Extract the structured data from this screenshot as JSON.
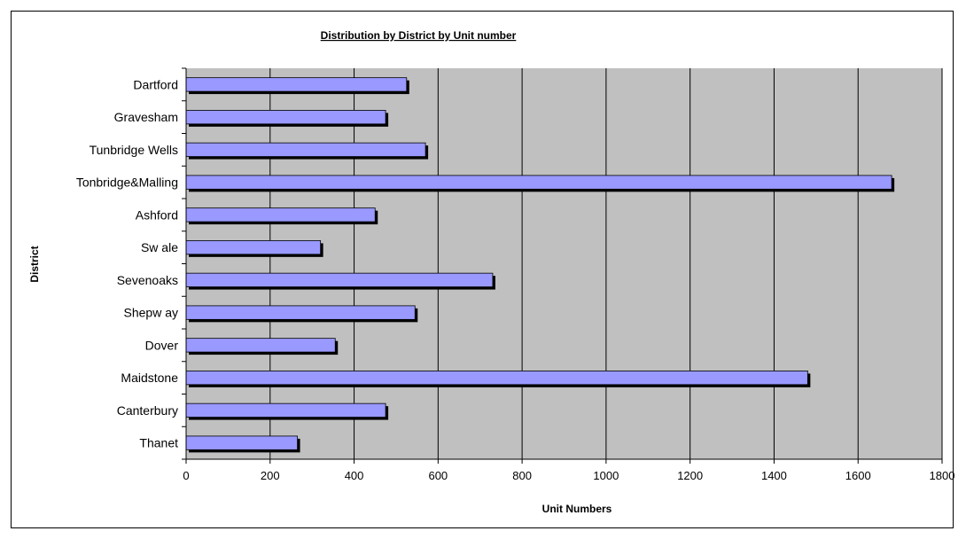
{
  "chart_data": {
    "type": "bar",
    "orientation": "horizontal",
    "title": "Distribution by District by Unit number",
    "xlabel": "Unit Numbers",
    "ylabel": "District",
    "xlim": [
      0,
      1800
    ],
    "xticks": [
      0,
      200,
      400,
      600,
      800,
      1000,
      1200,
      1400,
      1600,
      1800
    ],
    "grid": true,
    "categories": [
      "Dartford",
      "Gravesham",
      "Tunbridge Wells",
      "Tonbridge&Malling",
      "Ashford",
      "Sw ale",
      "Sevenoaks",
      "Shepw ay",
      "Dover",
      "Maidstone",
      "Canterbury",
      "Thanet"
    ],
    "values": [
      525,
      475,
      570,
      1680,
      450,
      320,
      730,
      545,
      355,
      1480,
      475,
      265
    ],
    "colors": {
      "bar": "#9999ff",
      "bar_shadow": "#000000",
      "plot_bg": "#c0c0c0"
    }
  }
}
